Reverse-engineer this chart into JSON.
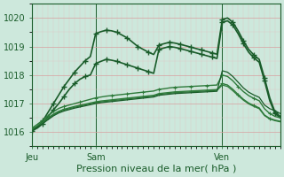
{
  "title": "Pression niveau de la mer( hPa )",
  "bg_color": "#cde8dc",
  "grid_color_major": "#d8a0a0",
  "grid_color_minor": "#e0c8c8",
  "line_color_dark": "#1a5c2a",
  "line_color_mid": "#2d7a3a",
  "ylabel_color": "#1a5c2a",
  "ylim": [
    1015.5,
    1020.5
  ],
  "yticks": [
    1016,
    1017,
    1018,
    1019,
    1020
  ],
  "xlim": [
    0,
    47
  ],
  "x_ticks": [
    0,
    12,
    36
  ],
  "x_labels": [
    "Jeu",
    "Sam",
    "Ven"
  ],
  "num_points": 48,
  "lines": [
    {
      "color": "#1a5c2a",
      "lw": 1.2,
      "marker": "+",
      "ms": 4,
      "mew": 1.0,
      "every": 2,
      "data": [
        1016.1,
        1016.2,
        1016.4,
        1016.7,
        1017.0,
        1017.3,
        1017.6,
        1017.85,
        1018.1,
        1018.3,
        1018.5,
        1018.65,
        1019.45,
        1019.52,
        1019.57,
        1019.55,
        1019.5,
        1019.4,
        1019.3,
        1019.15,
        1019.0,
        1018.9,
        1018.8,
        1018.72,
        1019.05,
        1019.1,
        1019.15,
        1019.12,
        1019.08,
        1019.03,
        1018.98,
        1018.93,
        1018.88,
        1018.83,
        1018.78,
        1018.73,
        1019.95,
        1020.0,
        1019.85,
        1019.55,
        1019.2,
        1018.9,
        1018.7,
        1018.55,
        1017.9,
        1017.2,
        1016.7,
        1016.55
      ]
    },
    {
      "color": "#1a5c2a",
      "lw": 1.2,
      "marker": "+",
      "ms": 4,
      "mew": 1.0,
      "every": 2,
      "data": [
        1016.05,
        1016.15,
        1016.3,
        1016.55,
        1016.78,
        1017.0,
        1017.25,
        1017.5,
        1017.7,
        1017.85,
        1017.95,
        1018.0,
        1018.4,
        1018.48,
        1018.55,
        1018.52,
        1018.48,
        1018.42,
        1018.36,
        1018.3,
        1018.24,
        1018.18,
        1018.12,
        1018.06,
        1018.9,
        1018.95,
        1019.0,
        1018.97,
        1018.93,
        1018.88,
        1018.83,
        1018.78,
        1018.73,
        1018.68,
        1018.63,
        1018.58,
        1019.85,
        1019.9,
        1019.75,
        1019.45,
        1019.1,
        1018.8,
        1018.6,
        1018.45,
        1017.8,
        1017.1,
        1016.65,
        1016.5
      ]
    },
    {
      "color": "#2d7a3a",
      "lw": 1.0,
      "marker": "+",
      "ms": 3,
      "mew": 0.8,
      "every": 3,
      "data": [
        1016.15,
        1016.28,
        1016.42,
        1016.58,
        1016.72,
        1016.83,
        1016.9,
        1016.95,
        1017.0,
        1017.05,
        1017.1,
        1017.15,
        1017.2,
        1017.23,
        1017.26,
        1017.28,
        1017.3,
        1017.32,
        1017.34,
        1017.36,
        1017.38,
        1017.4,
        1017.42,
        1017.44,
        1017.5,
        1017.52,
        1017.55,
        1017.57,
        1017.58,
        1017.59,
        1017.6,
        1017.61,
        1017.62,
        1017.63,
        1017.64,
        1017.65,
        1018.0,
        1017.95,
        1017.8,
        1017.6,
        1017.42,
        1017.28,
        1017.18,
        1017.1,
        1016.82,
        1016.65,
        1016.55,
        1016.5
      ]
    },
    {
      "color": "#2d7a3a",
      "lw": 1.0,
      "marker": "+",
      "ms": 3,
      "mew": 0.8,
      "every": 3,
      "data": [
        1016.1,
        1016.22,
        1016.35,
        1016.5,
        1016.63,
        1016.73,
        1016.8,
        1016.85,
        1016.9,
        1016.94,
        1016.98,
        1017.02,
        1017.06,
        1017.09,
        1017.11,
        1017.13,
        1017.15,
        1017.17,
        1017.19,
        1017.21,
        1017.23,
        1017.25,
        1017.27,
        1017.29,
        1017.35,
        1017.37,
        1017.39,
        1017.41,
        1017.42,
        1017.43,
        1017.44,
        1017.45,
        1017.46,
        1017.47,
        1017.48,
        1017.49,
        1017.7,
        1017.65,
        1017.5,
        1017.32,
        1017.15,
        1017.02,
        1016.93,
        1016.85,
        1016.6,
        1016.48,
        1016.42,
        1016.38
      ]
    },
    {
      "color": "#2d7a3a",
      "lw": 0.9,
      "marker": null,
      "ms": 0,
      "mew": 0,
      "every": 1,
      "data": [
        1016.08,
        1016.2,
        1016.33,
        1016.47,
        1016.6,
        1016.7,
        1016.77,
        1016.82,
        1016.87,
        1016.91,
        1016.95,
        1016.99,
        1017.03,
        1017.06,
        1017.08,
        1017.1,
        1017.12,
        1017.14,
        1017.16,
        1017.18,
        1017.2,
        1017.22,
        1017.24,
        1017.26,
        1017.32,
        1017.34,
        1017.36,
        1017.38,
        1017.39,
        1017.4,
        1017.41,
        1017.42,
        1017.43,
        1017.44,
        1017.45,
        1017.46,
        1017.65,
        1017.6,
        1017.45,
        1017.28,
        1017.12,
        1016.99,
        1016.9,
        1016.82,
        1016.58,
        1016.46,
        1016.4,
        1016.36
      ]
    },
    {
      "color": "#1a5c2a",
      "lw": 0.9,
      "marker": null,
      "ms": 0,
      "mew": 0,
      "every": 1,
      "data": [
        1016.05,
        1016.18,
        1016.3,
        1016.44,
        1016.57,
        1016.67,
        1016.74,
        1016.79,
        1016.84,
        1016.88,
        1016.92,
        1016.96,
        1017.0,
        1017.03,
        1017.05,
        1017.07,
        1017.09,
        1017.11,
        1017.13,
        1017.15,
        1017.17,
        1017.19,
        1017.21,
        1017.23,
        1017.29,
        1017.31,
        1017.33,
        1017.35,
        1017.36,
        1017.37,
        1017.38,
        1017.39,
        1017.4,
        1017.41,
        1017.42,
        1017.43,
        1018.15,
        1018.1,
        1017.95,
        1017.75,
        1017.55,
        1017.4,
        1017.3,
        1017.22,
        1016.95,
        1016.82,
        1016.75,
        1016.65
      ]
    }
  ]
}
